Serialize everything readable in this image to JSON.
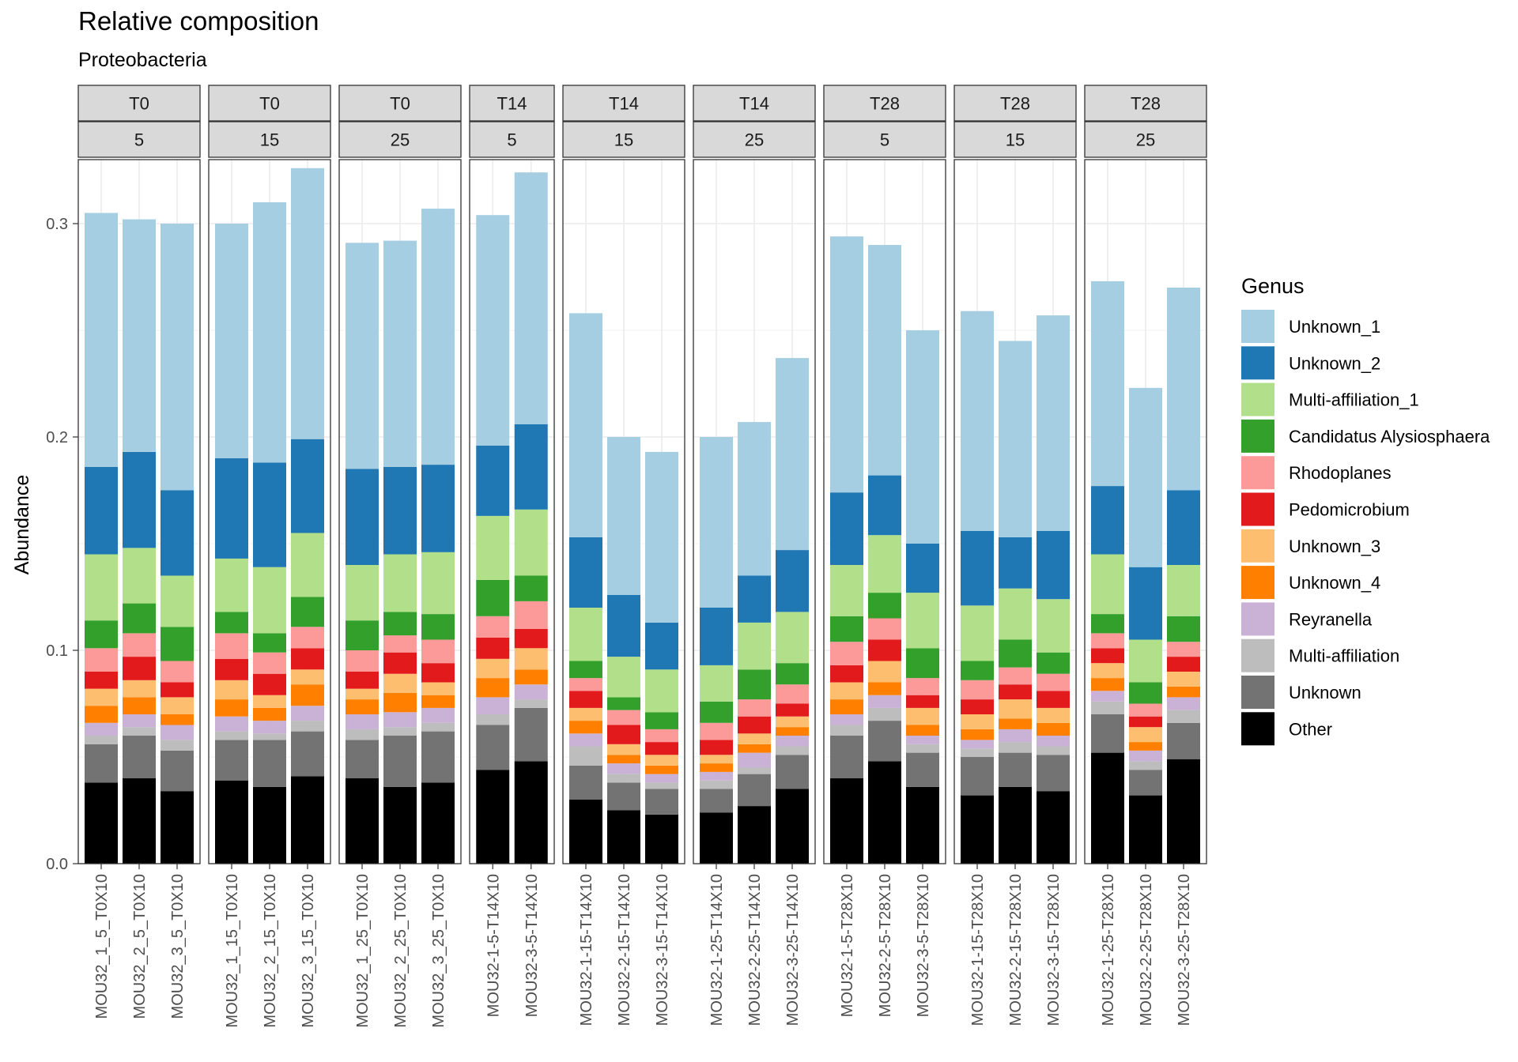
{
  "chart_data": {
    "type": "bar",
    "stacked": true,
    "faceted": true,
    "title": "Relative composition",
    "subtitle": "Proteobacteria",
    "ylabel": "Abundance",
    "xlabel": "",
    "ylim": [
      0,
      0.33
    ],
    "y_ticks": [
      0.0,
      0.1,
      0.2,
      0.3
    ],
    "y_tick_labels": [
      "0.0",
      "0.1",
      "0.2",
      "0.3"
    ],
    "grid": true,
    "legend": {
      "title": "Genus",
      "position": "right",
      "entries": [
        "Unknown_1",
        "Unknown_2",
        "Multi-affiliation_1",
        "Candidatus Alysiosphaera",
        "Rhodoplanes",
        "Pedomicrobium",
        "Unknown_3",
        "Unknown_4",
        "Reyranella",
        "Multi-affiliation",
        "Unknown",
        "Other"
      ]
    },
    "stack_order_bottom_to_top": [
      "Other",
      "Unknown",
      "Multi-affiliation",
      "Reyranella",
      "Unknown_4",
      "Unknown_3",
      "Pedomicrobium",
      "Rhodoplanes",
      "Candidatus Alysiosphaera",
      "Multi-affiliation_1",
      "Unknown_2",
      "Unknown_1"
    ],
    "colors": {
      "Unknown_1": "#a6cee3",
      "Unknown_2": "#1f78b4",
      "Multi-affiliation_1": "#b2df8a",
      "Candidatus Alysiosphaera": "#33a02c",
      "Rhodoplanes": "#fb9a99",
      "Pedomicrobium": "#e31a1c",
      "Unknown_3": "#fdbf6f",
      "Unknown_4": "#ff7f00",
      "Reyranella": "#cab2d6",
      "Multi-affiliation": "#bdbdbd",
      "Unknown": "#737373",
      "Other": "#000000"
    },
    "facets": [
      {
        "top": "T0",
        "bottom": "5",
        "samples": [
          {
            "name": "MOU32_1_5_T0X10",
            "values": {
              "Other": 0.038,
              "Unknown": 0.018,
              "Multi-affiliation": 0.004,
              "Reyranella": 0.006,
              "Unknown_4": 0.008,
              "Unknown_3": 0.008,
              "Pedomicrobium": 0.008,
              "Rhodoplanes": 0.011,
              "Candidatus Alysiosphaera": 0.013,
              "Multi-affiliation_1": 0.031,
              "Unknown_2": 0.041,
              "Unknown_1": 0.119
            }
          },
          {
            "name": "MOU32_2_5_T0X10",
            "values": {
              "Other": 0.04,
              "Unknown": 0.02,
              "Multi-affiliation": 0.004,
              "Reyranella": 0.006,
              "Unknown_4": 0.008,
              "Unknown_3": 0.008,
              "Pedomicrobium": 0.011,
              "Rhodoplanes": 0.011,
              "Candidatus Alysiosphaera": 0.014,
              "Multi-affiliation_1": 0.026,
              "Unknown_2": 0.045,
              "Unknown_1": 0.109
            }
          },
          {
            "name": "MOU32_3_5_T0X10",
            "values": {
              "Other": 0.034,
              "Unknown": 0.019,
              "Multi-affiliation": 0.005,
              "Reyranella": 0.007,
              "Unknown_4": 0.005,
              "Unknown_3": 0.008,
              "Pedomicrobium": 0.007,
              "Rhodoplanes": 0.01,
              "Candidatus Alysiosphaera": 0.016,
              "Multi-affiliation_1": 0.024,
              "Unknown_2": 0.04,
              "Unknown_1": 0.125
            }
          }
        ]
      },
      {
        "top": "T0",
        "bottom": "15",
        "samples": [
          {
            "name": "MOU32_1_15_T0X10",
            "values": {
              "Other": 0.039,
              "Unknown": 0.019,
              "Multi-affiliation": 0.004,
              "Reyranella": 0.007,
              "Unknown_4": 0.008,
              "Unknown_3": 0.009,
              "Pedomicrobium": 0.01,
              "Rhodoplanes": 0.012,
              "Candidatus Alysiosphaera": 0.01,
              "Multi-affiliation_1": 0.025,
              "Unknown_2": 0.047,
              "Unknown_1": 0.11
            }
          },
          {
            "name": "MOU32_2_15_T0X10",
            "values": {
              "Other": 0.036,
              "Unknown": 0.022,
              "Multi-affiliation": 0.003,
              "Reyranella": 0.006,
              "Unknown_4": 0.006,
              "Unknown_3": 0.006,
              "Pedomicrobium": 0.01,
              "Rhodoplanes": 0.01,
              "Candidatus Alysiosphaera": 0.009,
              "Multi-affiliation_1": 0.031,
              "Unknown_2": 0.049,
              "Unknown_1": 0.122
            }
          },
          {
            "name": "MOU32_3_15_T0X10",
            "values": {
              "Other": 0.041,
              "Unknown": 0.021,
              "Multi-affiliation": 0.005,
              "Reyranella": 0.007,
              "Unknown_4": 0.01,
              "Unknown_3": 0.007,
              "Pedomicrobium": 0.01,
              "Rhodoplanes": 0.01,
              "Candidatus Alysiosphaera": 0.014,
              "Multi-affiliation_1": 0.03,
              "Unknown_2": 0.044,
              "Unknown_1": 0.127
            }
          }
        ]
      },
      {
        "top": "T0",
        "bottom": "25",
        "samples": [
          {
            "name": "MOU32_1_25_T0X10",
            "values": {
              "Other": 0.04,
              "Unknown": 0.018,
              "Multi-affiliation": 0.005,
              "Reyranella": 0.007,
              "Unknown_4": 0.007,
              "Unknown_3": 0.005,
              "Pedomicrobium": 0.008,
              "Rhodoplanes": 0.01,
              "Candidatus Alysiosphaera": 0.014,
              "Multi-affiliation_1": 0.026,
              "Unknown_2": 0.045,
              "Unknown_1": 0.106
            }
          },
          {
            "name": "MOU32_2_25_T0X10",
            "values": {
              "Other": 0.036,
              "Unknown": 0.024,
              "Multi-affiliation": 0.004,
              "Reyranella": 0.007,
              "Unknown_4": 0.009,
              "Unknown_3": 0.009,
              "Pedomicrobium": 0.01,
              "Rhodoplanes": 0.008,
              "Candidatus Alysiosphaera": 0.011,
              "Multi-affiliation_1": 0.027,
              "Unknown_2": 0.041,
              "Unknown_1": 0.106
            }
          },
          {
            "name": "MOU32_3_25_T0X10",
            "values": {
              "Other": 0.038,
              "Unknown": 0.024,
              "Multi-affiliation": 0.004,
              "Reyranella": 0.007,
              "Unknown_4": 0.006,
              "Unknown_3": 0.006,
              "Pedomicrobium": 0.009,
              "Rhodoplanes": 0.011,
              "Candidatus Alysiosphaera": 0.012,
              "Multi-affiliation_1": 0.029,
              "Unknown_2": 0.041,
              "Unknown_1": 0.12
            }
          }
        ]
      },
      {
        "top": "T14",
        "bottom": "5",
        "samples": [
          {
            "name": "MOU32-1-5-T14X10",
            "values": {
              "Other": 0.044,
              "Unknown": 0.021,
              "Multi-affiliation": 0.005,
              "Reyranella": 0.008,
              "Unknown_4": 0.009,
              "Unknown_3": 0.009,
              "Pedomicrobium": 0.01,
              "Rhodoplanes": 0.01,
              "Candidatus Alysiosphaera": 0.017,
              "Multi-affiliation_1": 0.03,
              "Unknown_2": 0.033,
              "Unknown_1": 0.108
            }
          },
          {
            "name": "MOU32-3-5-T14X10",
            "values": {
              "Other": 0.048,
              "Unknown": 0.025,
              "Multi-affiliation": 0.004,
              "Reyranella": 0.007,
              "Unknown_4": 0.007,
              "Unknown_3": 0.01,
              "Pedomicrobium": 0.009,
              "Rhodoplanes": 0.013,
              "Candidatus Alysiosphaera": 0.012,
              "Multi-affiliation_1": 0.031,
              "Unknown_2": 0.04,
              "Unknown_1": 0.118
            }
          }
        ]
      },
      {
        "top": "T14",
        "bottom": "15",
        "samples": [
          {
            "name": "MOU32-1-15-T14X10",
            "values": {
              "Other": 0.03,
              "Unknown": 0.016,
              "Multi-affiliation": 0.009,
              "Reyranella": 0.006,
              "Unknown_4": 0.006,
              "Unknown_3": 0.006,
              "Pedomicrobium": 0.008,
              "Rhodoplanes": 0.006,
              "Candidatus Alysiosphaera": 0.008,
              "Multi-affiliation_1": 0.025,
              "Unknown_2": 0.033,
              "Unknown_1": 0.105
            }
          },
          {
            "name": "MOU32-2-15-T14X10",
            "values": {
              "Other": 0.025,
              "Unknown": 0.013,
              "Multi-affiliation": 0.004,
              "Reyranella": 0.005,
              "Unknown_4": 0.004,
              "Unknown_3": 0.005,
              "Pedomicrobium": 0.009,
              "Rhodoplanes": 0.007,
              "Candidatus Alysiosphaera": 0.006,
              "Multi-affiliation_1": 0.019,
              "Unknown_2": 0.029,
              "Unknown_1": 0.074
            }
          },
          {
            "name": "MOU32-3-15-T14X10",
            "values": {
              "Other": 0.023,
              "Unknown": 0.012,
              "Multi-affiliation": 0.003,
              "Reyranella": 0.004,
              "Unknown_4": 0.004,
              "Unknown_3": 0.005,
              "Pedomicrobium": 0.006,
              "Rhodoplanes": 0.006,
              "Candidatus Alysiosphaera": 0.008,
              "Multi-affiliation_1": 0.02,
              "Unknown_2": 0.022,
              "Unknown_1": 0.08
            }
          }
        ]
      },
      {
        "top": "T14",
        "bottom": "25",
        "samples": [
          {
            "name": "MOU32-1-25-T14X10",
            "values": {
              "Other": 0.024,
              "Unknown": 0.011,
              "Multi-affiliation": 0.004,
              "Reyranella": 0.004,
              "Unknown_4": 0.004,
              "Unknown_3": 0.004,
              "Pedomicrobium": 0.007,
              "Rhodoplanes": 0.008,
              "Candidatus Alysiosphaera": 0.01,
              "Multi-affiliation_1": 0.017,
              "Unknown_2": 0.027,
              "Unknown_1": 0.08
            }
          },
          {
            "name": "MOU32-2-25-T14X10",
            "values": {
              "Other": 0.027,
              "Unknown": 0.015,
              "Multi-affiliation": 0.003,
              "Reyranella": 0.007,
              "Unknown_4": 0.004,
              "Unknown_3": 0.005,
              "Pedomicrobium": 0.008,
              "Rhodoplanes": 0.008,
              "Candidatus Alysiosphaera": 0.014,
              "Multi-affiliation_1": 0.022,
              "Unknown_2": 0.022,
              "Unknown_1": 0.072
            }
          },
          {
            "name": "MOU32-3-25-T14X10",
            "values": {
              "Other": 0.035,
              "Unknown": 0.016,
              "Multi-affiliation": 0.004,
              "Reyranella": 0.005,
              "Unknown_4": 0.004,
              "Unknown_3": 0.005,
              "Pedomicrobium": 0.006,
              "Rhodoplanes": 0.009,
              "Candidatus Alysiosphaera": 0.01,
              "Multi-affiliation_1": 0.024,
              "Unknown_2": 0.029,
              "Unknown_1": 0.09
            }
          }
        ]
      },
      {
        "top": "T28",
        "bottom": "5",
        "samples": [
          {
            "name": "MOU32-1-5-T28X10",
            "values": {
              "Other": 0.04,
              "Unknown": 0.02,
              "Multi-affiliation": 0.005,
              "Reyranella": 0.005,
              "Unknown_4": 0.007,
              "Unknown_3": 0.008,
              "Pedomicrobium": 0.008,
              "Rhodoplanes": 0.011,
              "Candidatus Alysiosphaera": 0.012,
              "Multi-affiliation_1": 0.024,
              "Unknown_2": 0.034,
              "Unknown_1": 0.12
            }
          },
          {
            "name": "MOU32-2-5-T28X10",
            "values": {
              "Other": 0.048,
              "Unknown": 0.019,
              "Multi-affiliation": 0.006,
              "Reyranella": 0.006,
              "Unknown_4": 0.006,
              "Unknown_3": 0.01,
              "Pedomicrobium": 0.01,
              "Rhodoplanes": 0.01,
              "Candidatus Alysiosphaera": 0.012,
              "Multi-affiliation_1": 0.027,
              "Unknown_2": 0.028,
              "Unknown_1": 0.108
            }
          },
          {
            "name": "MOU32-3-5-T28X10",
            "values": {
              "Other": 0.036,
              "Unknown": 0.016,
              "Multi-affiliation": 0.004,
              "Reyranella": 0.004,
              "Unknown_4": 0.005,
              "Unknown_3": 0.008,
              "Pedomicrobium": 0.006,
              "Rhodoplanes": 0.008,
              "Candidatus Alysiosphaera": 0.014,
              "Multi-affiliation_1": 0.026,
              "Unknown_2": 0.023,
              "Unknown_1": 0.1
            }
          }
        ]
      },
      {
        "top": "T28",
        "bottom": "15",
        "samples": [
          {
            "name": "MOU32-1-15-T28X10",
            "values": {
              "Other": 0.032,
              "Unknown": 0.018,
              "Multi-affiliation": 0.004,
              "Reyranella": 0.004,
              "Unknown_4": 0.005,
              "Unknown_3": 0.007,
              "Pedomicrobium": 0.007,
              "Rhodoplanes": 0.009,
              "Candidatus Alysiosphaera": 0.009,
              "Multi-affiliation_1": 0.026,
              "Unknown_2": 0.035,
              "Unknown_1": 0.103
            }
          },
          {
            "name": "MOU32-2-15-T28X10",
            "values": {
              "Other": 0.036,
              "Unknown": 0.016,
              "Multi-affiliation": 0.005,
              "Reyranella": 0.006,
              "Unknown_4": 0.005,
              "Unknown_3": 0.009,
              "Pedomicrobium": 0.007,
              "Rhodoplanes": 0.008,
              "Candidatus Alysiosphaera": 0.013,
              "Multi-affiliation_1": 0.024,
              "Unknown_2": 0.024,
              "Unknown_1": 0.092
            }
          },
          {
            "name": "MOU32-3-15-T28X10",
            "values": {
              "Other": 0.034,
              "Unknown": 0.017,
              "Multi-affiliation": 0.004,
              "Reyranella": 0.005,
              "Unknown_4": 0.006,
              "Unknown_3": 0.007,
              "Pedomicrobium": 0.008,
              "Rhodoplanes": 0.008,
              "Candidatus Alysiosphaera": 0.01,
              "Multi-affiliation_1": 0.025,
              "Unknown_2": 0.032,
              "Unknown_1": 0.101
            }
          }
        ]
      },
      {
        "top": "T28",
        "bottom": "25",
        "samples": [
          {
            "name": "MOU32-1-25-T28X10",
            "values": {
              "Other": 0.052,
              "Unknown": 0.018,
              "Multi-affiliation": 0.006,
              "Reyranella": 0.005,
              "Unknown_4": 0.006,
              "Unknown_3": 0.007,
              "Pedomicrobium": 0.007,
              "Rhodoplanes": 0.007,
              "Candidatus Alysiosphaera": 0.009,
              "Multi-affiliation_1": 0.028,
              "Unknown_2": 0.032,
              "Unknown_1": 0.096
            }
          },
          {
            "name": "MOU32-2-25-T28X10",
            "values": {
              "Other": 0.032,
              "Unknown": 0.012,
              "Multi-affiliation": 0.004,
              "Reyranella": 0.005,
              "Unknown_4": 0.004,
              "Unknown_3": 0.007,
              "Pedomicrobium": 0.005,
              "Rhodoplanes": 0.006,
              "Candidatus Alysiosphaera": 0.01,
              "Multi-affiliation_1": 0.02,
              "Unknown_2": 0.034,
              "Unknown_1": 0.084
            }
          },
          {
            "name": "MOU32-3-25-T28X10",
            "values": {
              "Other": 0.049,
              "Unknown": 0.017,
              "Multi-affiliation": 0.006,
              "Reyranella": 0.006,
              "Unknown_4": 0.005,
              "Unknown_3": 0.007,
              "Pedomicrobium": 0.007,
              "Rhodoplanes": 0.007,
              "Candidatus Alysiosphaera": 0.012,
              "Multi-affiliation_1": 0.024,
              "Unknown_2": 0.035,
              "Unknown_1": 0.095
            }
          }
        ]
      }
    ]
  }
}
